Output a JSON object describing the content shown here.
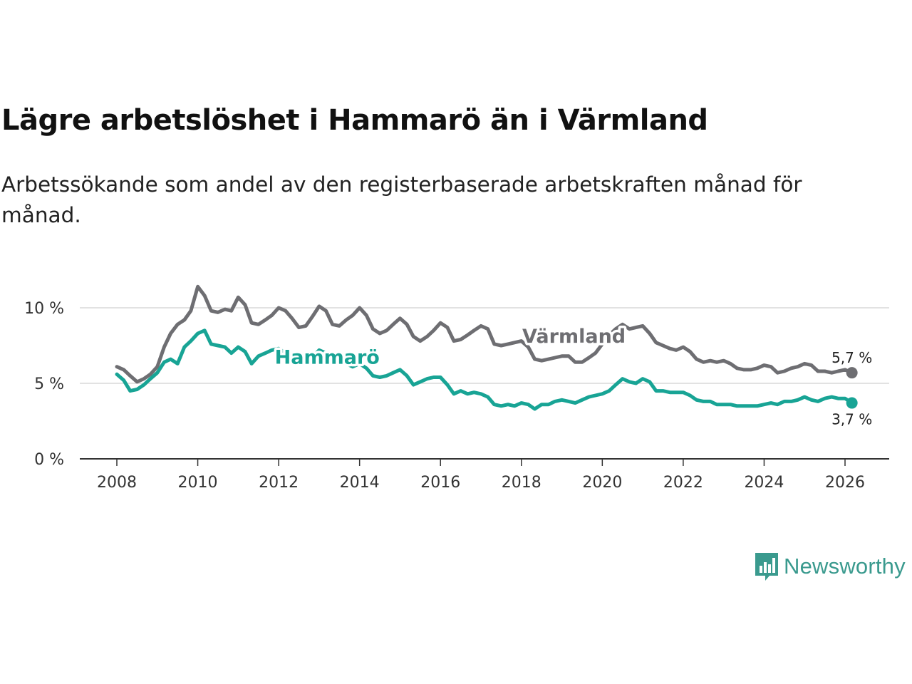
{
  "title": "Lägre arbetslöshet i Hammarö än i Värmland",
  "subtitle": "Arbetssökande som andel av den registerbaserade arbetskraften månad för månad.",
  "brand": {
    "name": "Newsworthy",
    "color": "#3a9a8e",
    "icon": "bar-chart-speech-bubble-icon"
  },
  "chart_data": {
    "type": "line",
    "title": "Lägre arbetslöshet i Hammarö än i Värmland",
    "xlabel": "",
    "ylabel": "",
    "xlim": [
      2007.3,
      2026.9
    ],
    "ylim": [
      0,
      10
    ],
    "y_ticks": [
      {
        "value": 0,
        "label": "0 %"
      },
      {
        "value": 5,
        "label": "5 %"
      },
      {
        "value": 10,
        "label": "10 %"
      }
    ],
    "x_ticks": [
      {
        "value": 2008,
        "label": "2008"
      },
      {
        "value": 2010,
        "label": "2010"
      },
      {
        "value": 2012,
        "label": "2012"
      },
      {
        "value": 2014,
        "label": "2014"
      },
      {
        "value": 2016,
        "label": "2016"
      },
      {
        "value": 2018,
        "label": "2018"
      },
      {
        "value": 2020,
        "label": "2020"
      },
      {
        "value": 2022,
        "label": "2022"
      },
      {
        "value": 2024,
        "label": "2024"
      },
      {
        "value": 2026,
        "label": "2026"
      }
    ],
    "grid": true,
    "series": [
      {
        "name": "Värmland",
        "label": "Värmland",
        "color": "#6e6e72",
        "end_label": "5,7 %",
        "points": [
          [
            2008.0,
            6.1
          ],
          [
            2008.17,
            5.9
          ],
          [
            2008.33,
            5.5
          ],
          [
            2008.5,
            5.1
          ],
          [
            2008.67,
            5.3
          ],
          [
            2008.83,
            5.6
          ],
          [
            2009.0,
            6.1
          ],
          [
            2009.17,
            7.4
          ],
          [
            2009.33,
            8.3
          ],
          [
            2009.5,
            8.9
          ],
          [
            2009.67,
            9.2
          ],
          [
            2009.83,
            9.8
          ],
          [
            2010.0,
            11.4
          ],
          [
            2010.17,
            10.8
          ],
          [
            2010.33,
            9.8
          ],
          [
            2010.5,
            9.7
          ],
          [
            2010.67,
            9.9
          ],
          [
            2010.83,
            9.8
          ],
          [
            2011.0,
            10.7
          ],
          [
            2011.17,
            10.2
          ],
          [
            2011.33,
            9.0
          ],
          [
            2011.5,
            8.9
          ],
          [
            2011.67,
            9.2
          ],
          [
            2011.83,
            9.5
          ],
          [
            2012.0,
            10.0
          ],
          [
            2012.17,
            9.8
          ],
          [
            2012.33,
            9.3
          ],
          [
            2012.5,
            8.7
          ],
          [
            2012.67,
            8.8
          ],
          [
            2012.83,
            9.4
          ],
          [
            2013.0,
            10.1
          ],
          [
            2013.17,
            9.8
          ],
          [
            2013.33,
            8.9
          ],
          [
            2013.5,
            8.8
          ],
          [
            2013.67,
            9.2
          ],
          [
            2013.83,
            9.5
          ],
          [
            2014.0,
            10.0
          ],
          [
            2014.17,
            9.5
          ],
          [
            2014.33,
            8.6
          ],
          [
            2014.5,
            8.3
          ],
          [
            2014.67,
            8.5
          ],
          [
            2014.83,
            8.9
          ],
          [
            2015.0,
            9.3
          ],
          [
            2015.17,
            8.9
          ],
          [
            2015.33,
            8.1
          ],
          [
            2015.5,
            7.8
          ],
          [
            2015.67,
            8.1
          ],
          [
            2015.83,
            8.5
          ],
          [
            2016.0,
            9.0
          ],
          [
            2016.17,
            8.7
          ],
          [
            2016.33,
            7.8
          ],
          [
            2016.5,
            7.9
          ],
          [
            2016.67,
            8.2
          ],
          [
            2016.83,
            8.5
          ],
          [
            2017.0,
            8.8
          ],
          [
            2017.17,
            8.6
          ],
          [
            2017.33,
            7.6
          ],
          [
            2017.5,
            7.5
          ],
          [
            2017.67,
            7.6
          ],
          [
            2017.83,
            7.7
          ],
          [
            2018.0,
            7.8
          ],
          [
            2018.17,
            7.4
          ],
          [
            2018.33,
            6.6
          ],
          [
            2018.5,
            6.5
          ],
          [
            2018.67,
            6.6
          ],
          [
            2018.83,
            6.7
          ],
          [
            2019.0,
            6.8
          ],
          [
            2019.17,
            6.8
          ],
          [
            2019.33,
            6.4
          ],
          [
            2019.5,
            6.4
          ],
          [
            2019.67,
            6.7
          ],
          [
            2019.83,
            7.0
          ],
          [
            2020.0,
            7.6
          ],
          [
            2020.17,
            8.2
          ],
          [
            2020.33,
            8.6
          ],
          [
            2020.5,
            8.9
          ],
          [
            2020.67,
            8.6
          ],
          [
            2020.83,
            8.7
          ],
          [
            2021.0,
            8.8
          ],
          [
            2021.17,
            8.3
          ],
          [
            2021.33,
            7.7
          ],
          [
            2021.5,
            7.5
          ],
          [
            2021.67,
            7.3
          ],
          [
            2021.83,
            7.2
          ],
          [
            2022.0,
            7.4
          ],
          [
            2022.17,
            7.1
          ],
          [
            2022.33,
            6.6
          ],
          [
            2022.5,
            6.4
          ],
          [
            2022.67,
            6.5
          ],
          [
            2022.83,
            6.4
          ],
          [
            2023.0,
            6.5
          ],
          [
            2023.17,
            6.3
          ],
          [
            2023.33,
            6.0
          ],
          [
            2023.5,
            5.9
          ],
          [
            2023.67,
            5.9
          ],
          [
            2023.83,
            6.0
          ],
          [
            2024.0,
            6.2
          ],
          [
            2024.17,
            6.1
          ],
          [
            2024.33,
            5.7
          ],
          [
            2024.5,
            5.8
          ],
          [
            2024.67,
            6.0
          ],
          [
            2024.83,
            6.1
          ],
          [
            2025.0,
            6.3
          ],
          [
            2025.17,
            6.2
          ],
          [
            2025.33,
            5.8
          ],
          [
            2025.5,
            5.8
          ],
          [
            2025.67,
            5.7
          ],
          [
            2025.83,
            5.8
          ],
          [
            2026.0,
            5.9
          ],
          [
            2026.17,
            5.7
          ]
        ]
      },
      {
        "name": "Hammarö",
        "label": "Hammarö",
        "color": "#18a495",
        "end_label": "3,7 %",
        "points": [
          [
            2008.0,
            5.6
          ],
          [
            2008.17,
            5.2
          ],
          [
            2008.33,
            4.5
          ],
          [
            2008.5,
            4.6
          ],
          [
            2008.67,
            4.9
          ],
          [
            2008.83,
            5.3
          ],
          [
            2009.0,
            5.7
          ],
          [
            2009.17,
            6.4
          ],
          [
            2009.33,
            6.6
          ],
          [
            2009.5,
            6.3
          ],
          [
            2009.67,
            7.4
          ],
          [
            2009.83,
            7.8
          ],
          [
            2010.0,
            8.3
          ],
          [
            2010.17,
            8.5
          ],
          [
            2010.33,
            7.6
          ],
          [
            2010.5,
            7.5
          ],
          [
            2010.67,
            7.4
          ],
          [
            2010.83,
            7.0
          ],
          [
            2011.0,
            7.4
          ],
          [
            2011.17,
            7.1
          ],
          [
            2011.33,
            6.3
          ],
          [
            2011.5,
            6.8
          ],
          [
            2011.67,
            7.0
          ],
          [
            2011.83,
            7.2
          ],
          [
            2012.0,
            7.3
          ],
          [
            2012.17,
            7.0
          ],
          [
            2012.33,
            6.6
          ],
          [
            2012.5,
            6.7
          ],
          [
            2012.67,
            6.6
          ],
          [
            2012.83,
            6.7
          ],
          [
            2013.0,
            7.2
          ],
          [
            2013.17,
            7.0
          ],
          [
            2013.33,
            6.6
          ],
          [
            2013.5,
            6.4
          ],
          [
            2013.67,
            6.3
          ],
          [
            2013.83,
            6.1
          ],
          [
            2014.0,
            6.3
          ],
          [
            2014.17,
            6.0
          ],
          [
            2014.33,
            5.5
          ],
          [
            2014.5,
            5.4
          ],
          [
            2014.67,
            5.5
          ],
          [
            2014.83,
            5.7
          ],
          [
            2015.0,
            5.9
          ],
          [
            2015.17,
            5.5
          ],
          [
            2015.33,
            4.9
          ],
          [
            2015.5,
            5.1
          ],
          [
            2015.67,
            5.3
          ],
          [
            2015.83,
            5.4
          ],
          [
            2016.0,
            5.4
          ],
          [
            2016.17,
            4.9
          ],
          [
            2016.33,
            4.3
          ],
          [
            2016.5,
            4.5
          ],
          [
            2016.67,
            4.3
          ],
          [
            2016.83,
            4.4
          ],
          [
            2017.0,
            4.3
          ],
          [
            2017.17,
            4.1
          ],
          [
            2017.33,
            3.6
          ],
          [
            2017.5,
            3.5
          ],
          [
            2017.67,
            3.6
          ],
          [
            2017.83,
            3.5
          ],
          [
            2018.0,
            3.7
          ],
          [
            2018.17,
            3.6
          ],
          [
            2018.33,
            3.3
          ],
          [
            2018.5,
            3.6
          ],
          [
            2018.67,
            3.6
          ],
          [
            2018.83,
            3.8
          ],
          [
            2019.0,
            3.9
          ],
          [
            2019.17,
            3.8
          ],
          [
            2019.33,
            3.7
          ],
          [
            2019.5,
            3.9
          ],
          [
            2019.67,
            4.1
          ],
          [
            2019.83,
            4.2
          ],
          [
            2020.0,
            4.3
          ],
          [
            2020.17,
            4.5
          ],
          [
            2020.33,
            4.9
          ],
          [
            2020.5,
            5.3
          ],
          [
            2020.67,
            5.1
          ],
          [
            2020.83,
            5.0
          ],
          [
            2021.0,
            5.3
          ],
          [
            2021.17,
            5.1
          ],
          [
            2021.33,
            4.5
          ],
          [
            2021.5,
            4.5
          ],
          [
            2021.67,
            4.4
          ],
          [
            2021.83,
            4.4
          ],
          [
            2022.0,
            4.4
          ],
          [
            2022.17,
            4.2
          ],
          [
            2022.33,
            3.9
          ],
          [
            2022.5,
            3.8
          ],
          [
            2022.67,
            3.8
          ],
          [
            2022.83,
            3.6
          ],
          [
            2023.0,
            3.6
          ],
          [
            2023.17,
            3.6
          ],
          [
            2023.33,
            3.5
          ],
          [
            2023.5,
            3.5
          ],
          [
            2023.67,
            3.5
          ],
          [
            2023.83,
            3.5
          ],
          [
            2024.0,
            3.6
          ],
          [
            2024.17,
            3.7
          ],
          [
            2024.33,
            3.6
          ],
          [
            2024.5,
            3.8
          ],
          [
            2024.67,
            3.8
          ],
          [
            2024.83,
            3.9
          ],
          [
            2025.0,
            4.1
          ],
          [
            2025.17,
            3.9
          ],
          [
            2025.33,
            3.8
          ],
          [
            2025.5,
            4.0
          ],
          [
            2025.67,
            4.1
          ],
          [
            2025.83,
            4.0
          ],
          [
            2026.0,
            4.0
          ],
          [
            2026.17,
            3.7
          ]
        ]
      }
    ]
  }
}
